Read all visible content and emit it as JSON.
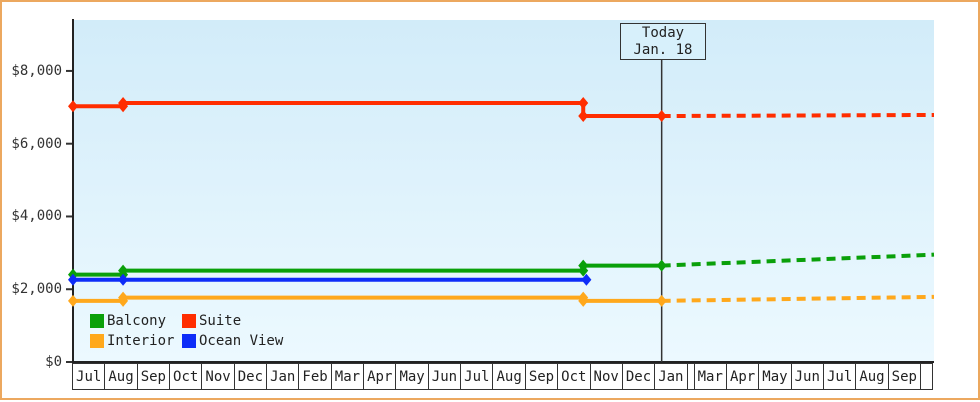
{
  "page": {
    "border_color": "#ECA85F"
  },
  "chart_data": {
    "type": "line",
    "title": "",
    "xlabel": "",
    "ylabel": "",
    "x_domain": [
      0,
      27
    ],
    "x_tick_labels": [
      "Jul",
      "Aug",
      "Sep",
      "Oct",
      "Nov",
      "Dec",
      "Jan",
      "Feb",
      "Mar",
      "Apr",
      "May",
      "Jun",
      "Jul",
      "Aug",
      "Sep",
      "Oct",
      "Nov",
      "Dec",
      "Jan",
      "",
      "Mar",
      "Apr",
      "May",
      "Jun",
      "Jul",
      "Aug",
      "Sep",
      ""
    ],
    "ylim": [
      0,
      9400
    ],
    "yticks": [
      {
        "value": 8000,
        "label": "$8,000"
      },
      {
        "value": 6000,
        "label": "$6,000"
      },
      {
        "value": 4000,
        "label": "$4,000"
      },
      {
        "value": 2000,
        "label": "$2,000"
      },
      {
        "value": 0,
        "label": "$0"
      }
    ],
    "grid": false,
    "plot_background": {
      "top": "#D2ECF9",
      "bottom": "#ECF9FF"
    },
    "legend_position": "inside-bottom-left",
    "legend_rows": [
      [
        "Balcony",
        "Suite"
      ],
      [
        "Interior",
        "Ocean View"
      ]
    ],
    "today": {
      "x": 18.46,
      "line1": "Today",
      "line2": "Jan. 18"
    },
    "series": [
      {
        "name": "Balcony",
        "color": "#0AA00A",
        "solid": [
          [
            0,
            2400
          ],
          [
            1.57,
            2400
          ],
          [
            1.57,
            2510
          ],
          [
            16,
            2510
          ],
          [
            16,
            2650
          ],
          [
            18.46,
            2650
          ]
        ],
        "dashed": [
          [
            18.46,
            2650
          ],
          [
            27,
            2950
          ]
        ]
      },
      {
        "name": "Suite",
        "color": "#FF2D00",
        "solid": [
          [
            0,
            7030
          ],
          [
            1.57,
            7030
          ],
          [
            1.57,
            7120
          ],
          [
            16,
            7120
          ],
          [
            16,
            6760
          ],
          [
            18.46,
            6760
          ]
        ],
        "dashed": [
          [
            18.46,
            6760
          ],
          [
            27,
            6790
          ]
        ]
      },
      {
        "name": "Interior",
        "color": "#FFA81C",
        "solid": [
          [
            0,
            1680
          ],
          [
            1.57,
            1680
          ],
          [
            1.57,
            1770
          ],
          [
            16,
            1770
          ],
          [
            16,
            1680
          ],
          [
            18.46,
            1680
          ]
        ],
        "dashed": [
          [
            18.46,
            1680
          ],
          [
            27,
            1790
          ]
        ]
      },
      {
        "name": "Ocean View",
        "color": "#0D2CF8",
        "solid": [
          [
            0,
            2260
          ],
          [
            1.57,
            2260
          ],
          [
            16.1,
            2260
          ]
        ],
        "dashed": null
      }
    ]
  }
}
